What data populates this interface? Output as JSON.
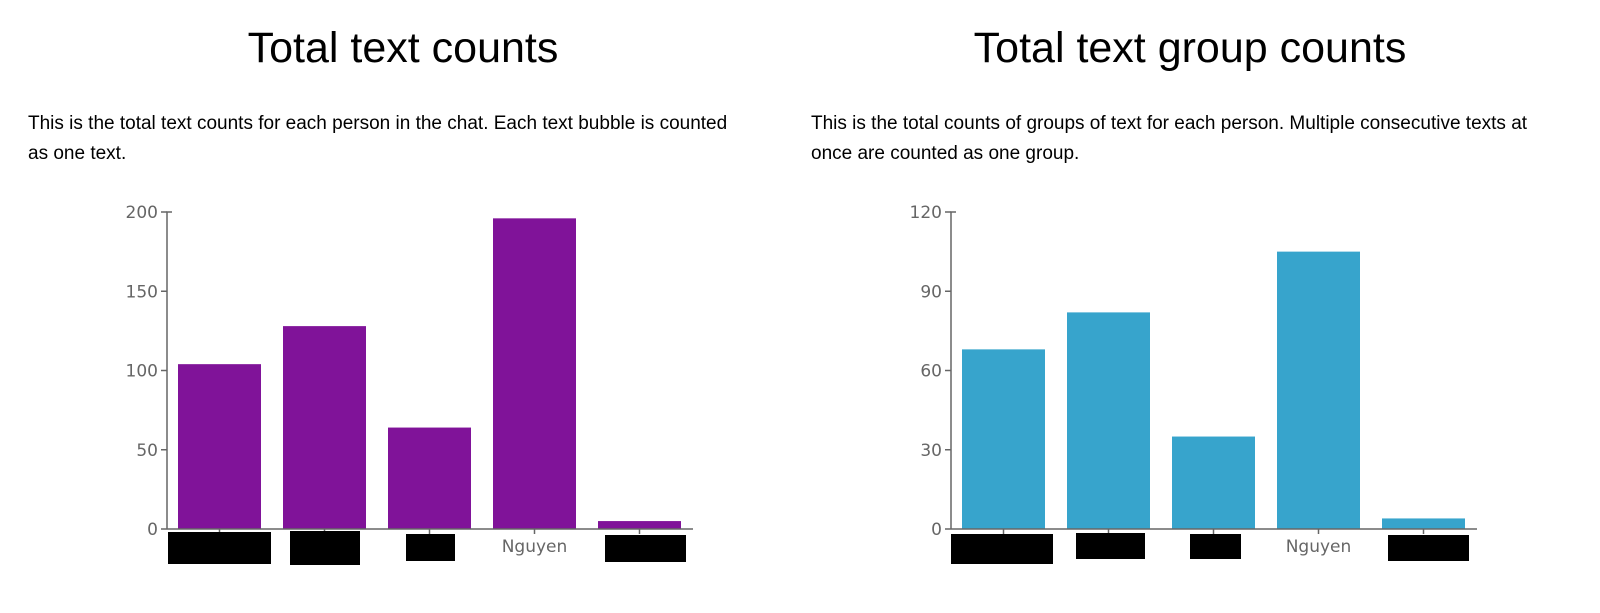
{
  "panels": [
    {
      "title": "Total text counts",
      "description": "This is the total text counts for each person in the chat. Each text bubble is counted as one text.",
      "chart_data": {
        "type": "bar",
        "categories": [
          "",
          "",
          "",
          "Nguyen",
          ""
        ],
        "values": [
          104,
          128,
          64,
          196,
          5
        ],
        "ylim": [
          0,
          200
        ],
        "yticks": [
          0,
          50,
          100,
          150,
          200
        ],
        "title": "",
        "xlabel": "",
        "ylabel": "",
        "color": "#801399",
        "grid": false,
        "redacted_labels": [
          true,
          true,
          true,
          false,
          true
        ]
      }
    },
    {
      "title": "Total text group counts",
      "description": "This is the total counts of groups of text for each person. Multiple consecutive texts at once are counted as one group.",
      "chart_data": {
        "type": "bar",
        "categories": [
          "",
          "",
          "",
          "Nguyen",
          ""
        ],
        "values": [
          68,
          82,
          35,
          105,
          4
        ],
        "ylim": [
          0,
          120
        ],
        "yticks": [
          0,
          30,
          60,
          90,
          120
        ],
        "title": "",
        "xlabel": "",
        "ylabel": "",
        "color": "#37a4cc",
        "grid": false,
        "redacted_labels": [
          true,
          true,
          true,
          false,
          true
        ]
      }
    }
  ]
}
